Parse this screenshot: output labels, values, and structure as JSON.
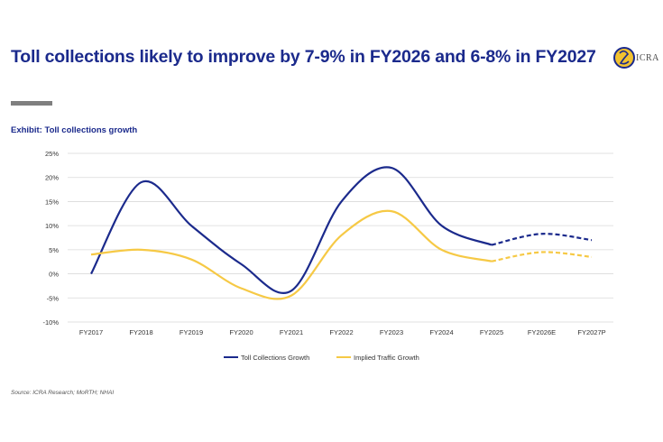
{
  "header": {
    "title": "Toll collections likely to improve by 7-9% in FY2026 and 6-8% in FY2027",
    "logo_text": "ICRA"
  },
  "exhibit": {
    "title": "Exhibit: Toll collections growth"
  },
  "source": "Source: ICRA Research; MoRTH; NHAI",
  "colors": {
    "toll": "#1b2a8c",
    "traffic": "#f6c945",
    "title": "#1b2a8c",
    "grid": "#d9d9d9"
  },
  "chart_data": {
    "type": "line",
    "categories": [
      "FY2017",
      "FY2018",
      "FY2019",
      "FY2020",
      "FY2021",
      "FY2022",
      "FY2023",
      "FY2024",
      "FY2025",
      "FY2026E",
      "FY2027P"
    ],
    "yticks": [
      "25%",
      "20%",
      "15%",
      "10%",
      "5%",
      "0%",
      "-5%",
      "-10%"
    ],
    "ylim": [
      -10,
      25
    ],
    "grid": true,
    "legend_position": "bottom",
    "projected_from_index": 8,
    "series": [
      {
        "name": "Toll Collections Growth",
        "color": "#1b2a8c",
        "values": [
          0,
          19,
          10,
          2,
          -3.5,
          15,
          22,
          10,
          6,
          8.3,
          7
        ]
      },
      {
        "name": "Implied Traffic Growth",
        "color": "#f6c945",
        "values": [
          4,
          5,
          3,
          -3,
          -4.5,
          8,
          13,
          5,
          2.6,
          4.5,
          3.5
        ]
      }
    ]
  }
}
